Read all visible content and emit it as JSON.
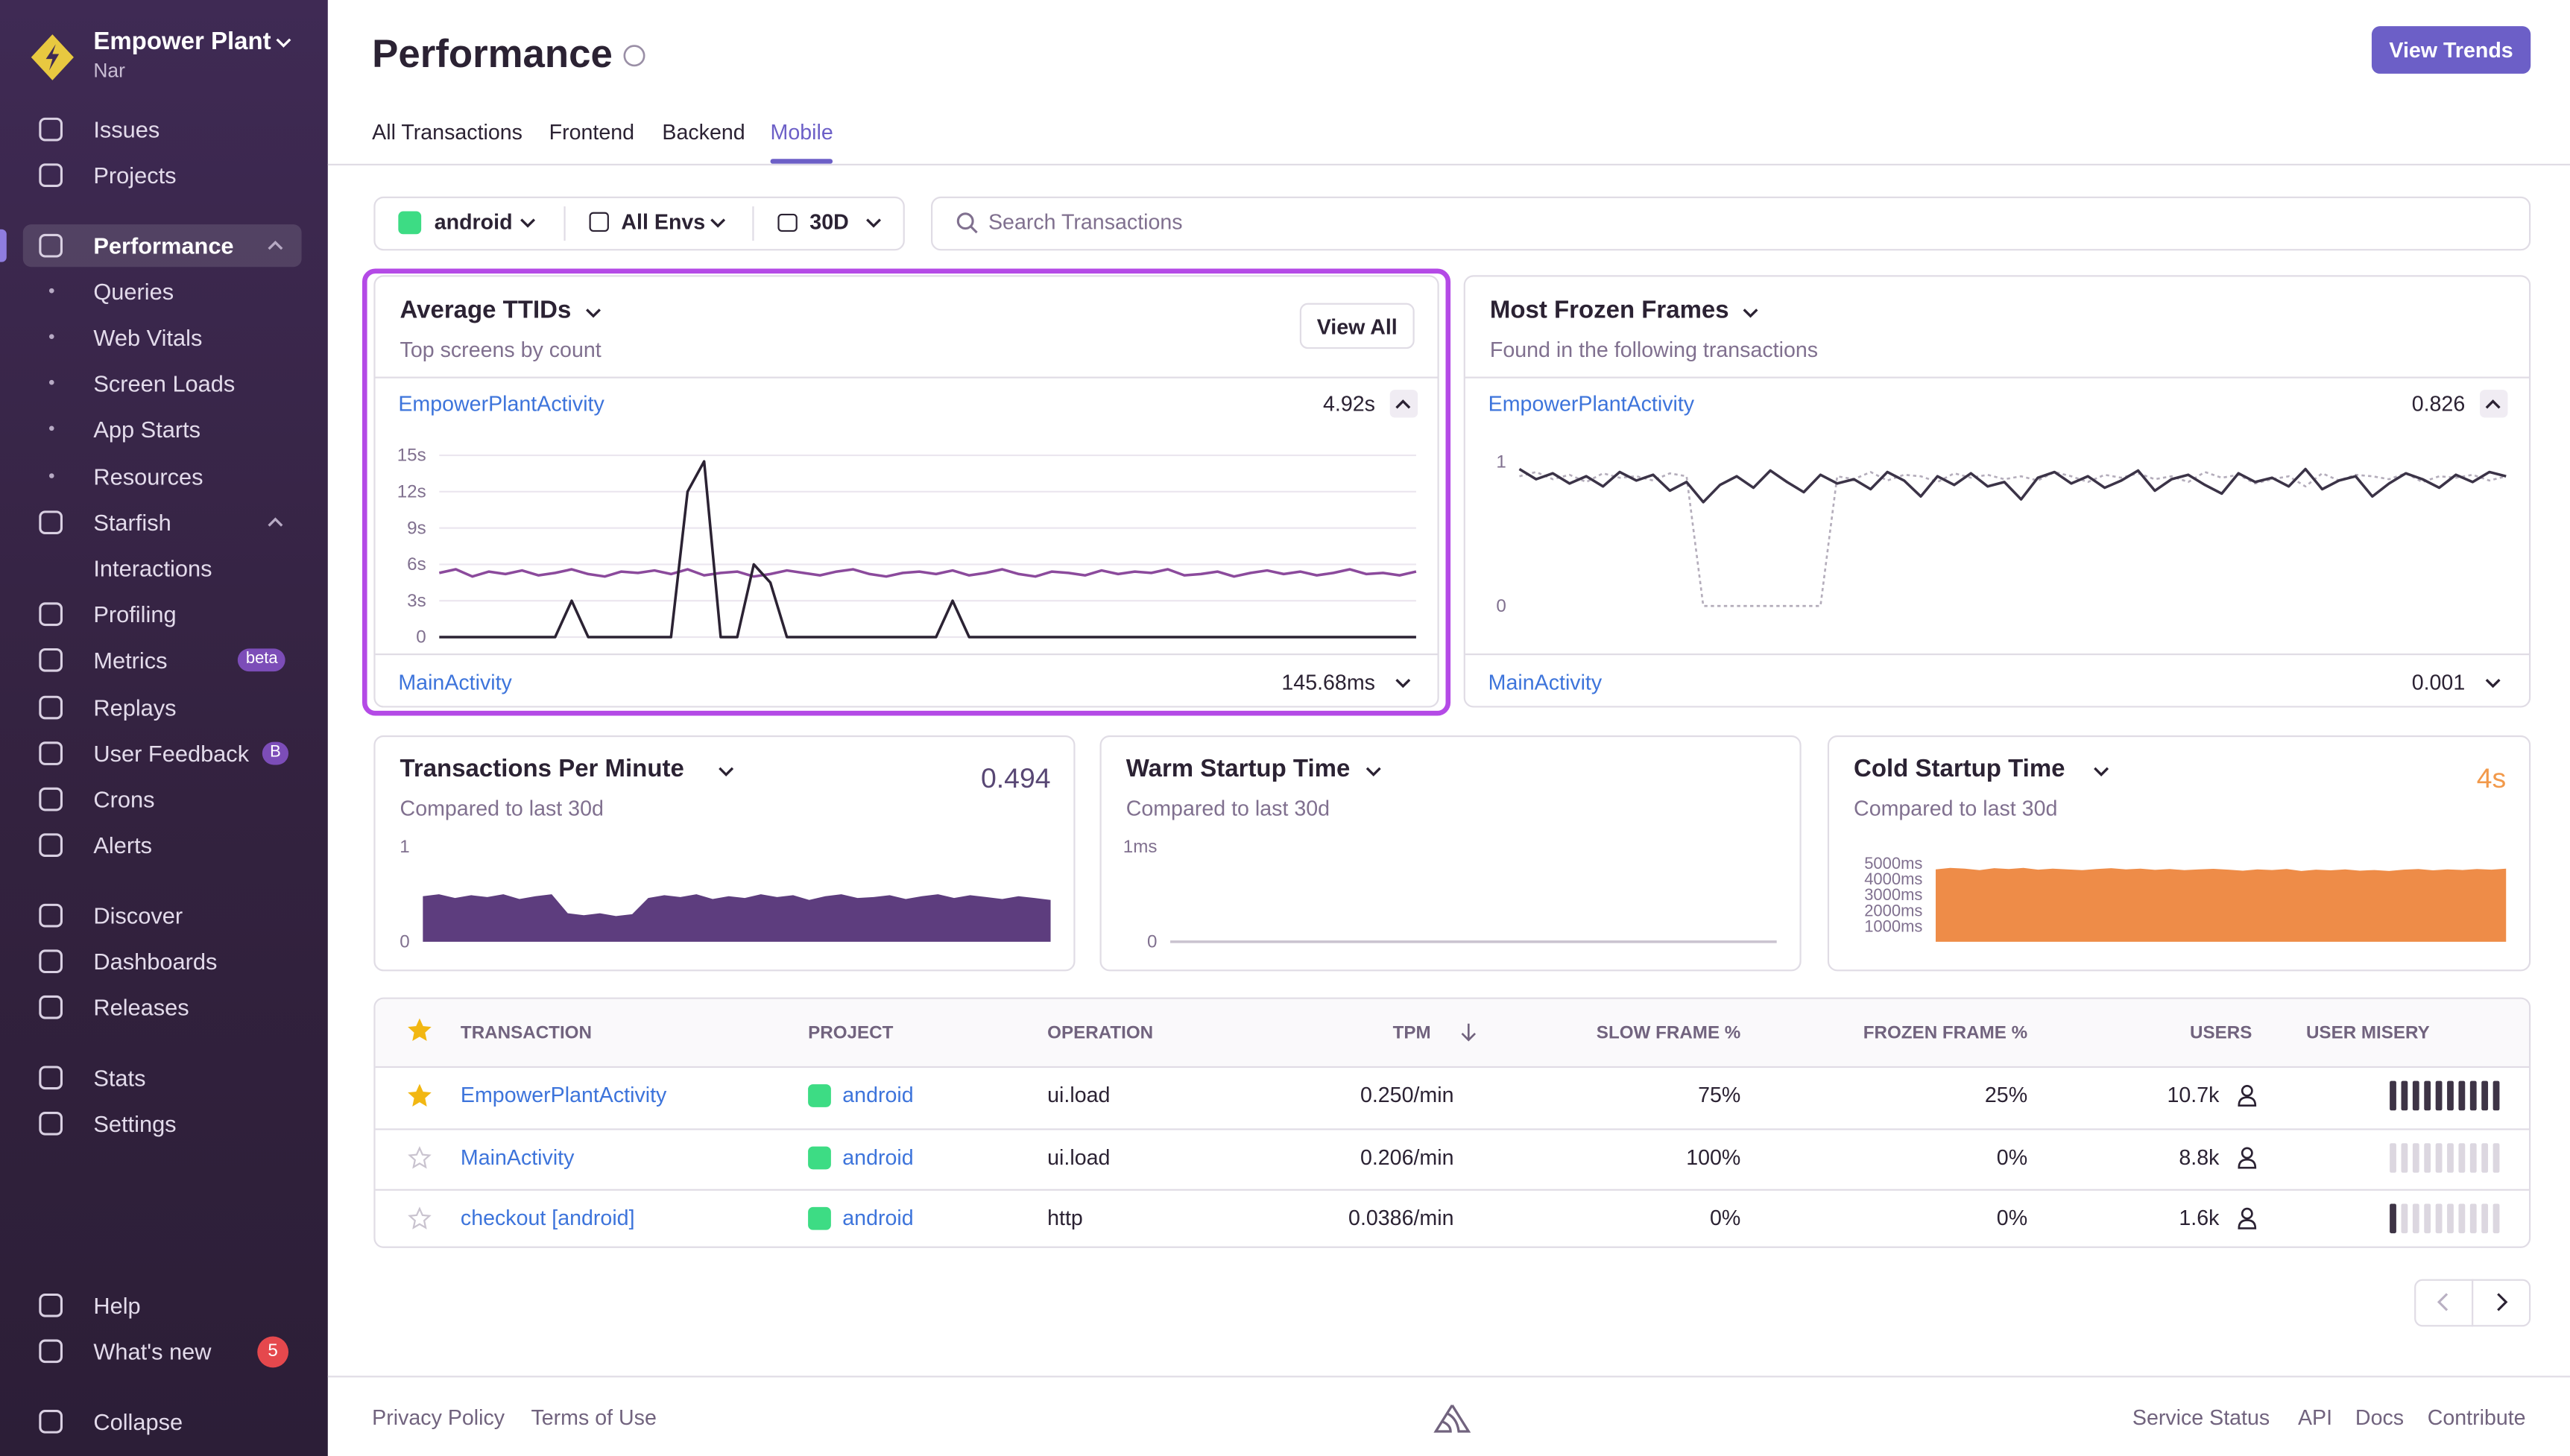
{
  "sidebar": {
    "org": "Empower Plant",
    "user": "Nar",
    "nav": [
      {
        "label": "Issues"
      },
      {
        "label": "Projects"
      },
      {
        "label": "Performance"
      },
      {
        "label": "Queries"
      },
      {
        "label": "Web Vitals"
      },
      {
        "label": "Screen Loads"
      },
      {
        "label": "App Starts"
      },
      {
        "label": "Resources"
      },
      {
        "label": "Starfish"
      },
      {
        "label": "Interactions"
      },
      {
        "label": "Profiling"
      },
      {
        "label": "Metrics",
        "badge": "beta"
      },
      {
        "label": "Replays"
      },
      {
        "label": "User Feedback",
        "badge": "B"
      },
      {
        "label": "Crons"
      },
      {
        "label": "Alerts"
      },
      {
        "label": "Discover"
      },
      {
        "label": "Dashboards"
      },
      {
        "label": "Releases"
      },
      {
        "label": "Stats"
      },
      {
        "label": "Settings"
      },
      {
        "label": "Help"
      },
      {
        "label": "What's new",
        "badge": "5"
      },
      {
        "label": "Collapse"
      }
    ]
  },
  "header": {
    "title": "Performance",
    "button": "View Trends",
    "tabs": [
      "All Transactions",
      "Frontend",
      "Backend",
      "Mobile"
    ],
    "active_tab": 3
  },
  "filters": {
    "project": "android",
    "environment": "All Envs",
    "period": "30D",
    "search_placeholder": "Search Transactions"
  },
  "widgets": [
    {
      "title": "Average TTIDs",
      "subtitle": "Top screens by count",
      "action": "View All",
      "rows": [
        {
          "name": "EmpowerPlantActivity",
          "value": "4.92s"
        },
        {
          "name": "MainActivity",
          "value": "145.68ms"
        }
      ],
      "chart": {
        "type": "line",
        "grid": true,
        "ylim": [
          0,
          15
        ],
        "yticks": [
          {
            "value": 0,
            "label": "0"
          },
          {
            "value": 3,
            "label": "3s"
          },
          {
            "value": 6,
            "label": "6s"
          },
          {
            "value": 9,
            "label": "9s"
          },
          {
            "value": 12,
            "label": "12s"
          },
          {
            "value": 15,
            "label": "15s"
          }
        ],
        "series": [
          {
            "color": "#8b4a9c",
            "type": "line",
            "values": [
              5.3,
              5.6,
              5.0,
              5.4,
              5.2,
              5.5,
              5.1,
              5.3,
              5.6,
              5.2,
              5.0,
              5.4,
              5.3,
              5.5,
              5.2,
              5.6,
              5.1,
              5.3,
              5.4,
              5.0,
              5.2,
              5.5,
              5.3,
              5.1,
              5.4,
              5.6,
              5.2,
              5.0,
              5.3,
              5.4,
              5.2,
              5.5,
              5.1,
              5.3,
              5.6,
              5.2,
              5.0,
              5.4,
              5.3,
              5.1,
              5.5,
              5.2,
              5.4,
              5.3,
              5.6,
              5.1,
              5.2,
              5.4,
              5.0,
              5.3,
              5.5,
              5.2,
              5.4,
              5.1,
              5.3,
              5.6,
              5.2,
              5.3,
              5.1,
              5.4
            ]
          },
          {
            "color": "#2b2233",
            "type": "line",
            "values": [
              0,
              0,
              0,
              0,
              0,
              0,
              0,
              0,
              3,
              0,
              0,
              0,
              0,
              0,
              0,
              12,
              14.5,
              0,
              0,
              6,
              4.5,
              0,
              0,
              0,
              0,
              0,
              0,
              0,
              0,
              0,
              0,
              3,
              0,
              0,
              0,
              0,
              0,
              0,
              0,
              0,
              0,
              0,
              0,
              0,
              0,
              0,
              0,
              0,
              0,
              0,
              0,
              0,
              0,
              0,
              0,
              0,
              0,
              0,
              0,
              0
            ]
          }
        ]
      }
    },
    {
      "title": "Most Frozen Frames",
      "subtitle": "Found in the following transactions",
      "rows": [
        {
          "name": "EmpowerPlantActivity",
          "value": "0.826"
        },
        {
          "name": "MainActivity",
          "value": "0.001"
        }
      ],
      "chart": {
        "type": "line",
        "grid": false,
        "ylim": [
          0,
          1
        ],
        "yticks": [
          0,
          1
        ],
        "series": [
          {
            "color": "#b4adbb",
            "type": "line",
            "dashed": true,
            "values": [
              0.9,
              0.93,
              0.88,
              0.91,
              0.86,
              0.92,
              0.89,
              0.9,
              0.87,
              0.92,
              0.9,
              0,
              0,
              0,
              0,
              0,
              0,
              0,
              0,
              0.9,
              0.88,
              0.93,
              0.87,
              0.91,
              0.9,
              0.86,
              0.92,
              0.89,
              0.91,
              0.88,
              0.9,
              0.87,
              0.93,
              0.9,
              0.86,
              0.91,
              0.89,
              0.92,
              0.88,
              0.9,
              0.86,
              0.93,
              0.89,
              0.91,
              0.85,
              0.88,
              0.9,
              0.83,
              0.92,
              0.87,
              0.91,
              0.9,
              0.88,
              0.92,
              0.86,
              0.9,
              0.89,
              0.91,
              0.87,
              0.9
            ]
          },
          {
            "color": "#3b3347",
            "type": "line",
            "values": [
              0.95,
              0.88,
              0.92,
              0.85,
              0.9,
              0.83,
              0.93,
              0.87,
              0.91,
              0.8,
              0.86,
              0.72,
              0.84,
              0.9,
              0.82,
              0.94,
              0.86,
              0.79,
              0.91,
              0.85,
              0.88,
              0.81,
              0.93,
              0.87,
              0.76,
              0.9,
              0.84,
              0.92,
              0.83,
              0.86,
              0.74,
              0.89,
              0.93,
              0.85,
              0.9,
              0.82,
              0.87,
              0.94,
              0.8,
              0.88,
              0.91,
              0.84,
              0.78,
              0.92,
              0.86,
              0.89,
              0.83,
              0.95,
              0.81,
              0.87,
              0.9,
              0.76,
              0.85,
              0.92,
              0.88,
              0.82,
              0.91,
              0.86,
              0.93,
              0.9
            ]
          }
        ]
      }
    },
    {
      "title": "Transactions Per Minute",
      "subtitle": "Compared to last 30d",
      "value": "0.494",
      "value_color": "#584774",
      "chart": {
        "type": "area",
        "grid": false,
        "ylim": [
          0,
          1
        ],
        "yticks": [
          0,
          1
        ],
        "series": [
          {
            "color": "#5d3d7e",
            "type": "area",
            "values": [
              0.48,
              0.5,
              0.46,
              0.49,
              0.47,
              0.5,
              0.45,
              0.48,
              0.5,
              0.3,
              0.28,
              0.3,
              0.27,
              0.29,
              0.46,
              0.49,
              0.47,
              0.5,
              0.45,
              0.48,
              0.46,
              0.5,
              0.47,
              0.49,
              0.44,
              0.48,
              0.5,
              0.46,
              0.47,
              0.49,
              0.45,
              0.48,
              0.5,
              0.46,
              0.49,
              0.47,
              0.45,
              0.48,
              0.46,
              0.44
            ]
          }
        ]
      }
    },
    {
      "title": "Warm Startup Time",
      "subtitle": "Compared to last 30d",
      "chart": {
        "type": "line",
        "grid": false,
        "ylim": [
          0,
          1
        ],
        "yticks": [
          0,
          {
            "value": 1,
            "label": "1ms"
          }
        ],
        "series": [
          {
            "color": "#c9c3cf",
            "type": "line",
            "values": [
              0,
              0,
              0,
              0,
              0,
              0,
              0,
              0,
              0,
              0,
              0,
              0,
              0,
              0,
              0,
              0,
              0,
              0,
              0,
              0
            ]
          }
        ]
      }
    },
    {
      "title": "Cold Startup Time",
      "subtitle": "Compared to last 30d",
      "value": "4s",
      "value_color": "#f2994a",
      "chart": {
        "type": "area",
        "grid": false,
        "ylim": [
          0,
          5000
        ],
        "yticks": [
          {
            "value": 1000,
            "label": "1000ms"
          },
          {
            "value": 2000,
            "label": "2000ms"
          },
          {
            "value": 3000,
            "label": "3000ms"
          },
          {
            "value": 4000,
            "label": "4000ms"
          },
          {
            "value": 5000,
            "label": "5000ms"
          }
        ],
        "series": [
          {
            "color": "#ee8c48",
            "type": "area",
            "values": [
              4600,
              4700,
              4650,
              4550,
              4680,
              4620,
              4700,
              4580,
              4650,
              4600,
              4550,
              4620,
              4680,
              4600,
              4650,
              4570,
              4620,
              4550,
              4600,
              4640,
              4580,
              4520,
              4600,
              4560,
              4620,
              4500,
              4580,
              4540,
              4600,
              4520,
              4560,
              4500,
              4580,
              4620,
              4540,
              4600,
              4560,
              4620,
              4580,
              4650
            ]
          }
        ]
      }
    }
  ],
  "table": {
    "columns": [
      "TRANSACTION",
      "PROJECT",
      "OPERATION",
      "TPM",
      "SLOW FRAME %",
      "FROZEN FRAME %",
      "USERS",
      "USER MISERY"
    ],
    "rows": [
      {
        "starred": true,
        "transaction": "EmpowerPlantActivity",
        "project": "android",
        "operation": "ui.load",
        "tpm": "0.250/min",
        "slow_frame": "75%",
        "frozen_frame": "25%",
        "users": "10.7k",
        "misery": 10
      },
      {
        "starred": false,
        "transaction": "MainActivity",
        "project": "android",
        "operation": "ui.load",
        "tpm": "0.206/min",
        "slow_frame": "100%",
        "frozen_frame": "0%",
        "users": "8.8k",
        "misery": 0
      },
      {
        "starred": false,
        "transaction": "checkout [android]",
        "project": "android",
        "operation": "http",
        "tpm": "0.0386/min",
        "slow_frame": "0%",
        "frozen_frame": "0%",
        "users": "1.6k",
        "misery": 1
      }
    ]
  },
  "footer": {
    "left": [
      "Privacy Policy",
      "Terms of Use"
    ],
    "right": [
      "Service Status",
      "API",
      "Docs",
      "Contribute"
    ]
  }
}
